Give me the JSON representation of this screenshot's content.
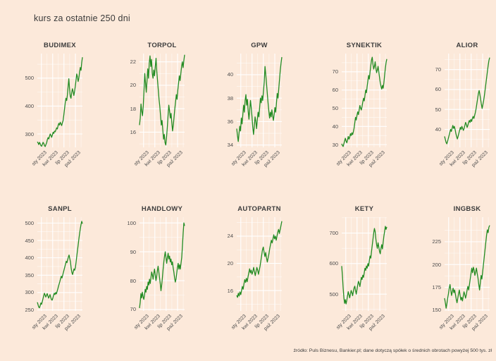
{
  "page": {
    "title": "kurs za ostatnie 250 dni",
    "footer": "źródło: Puls Biznesu, Bankier.pl; dane dotyczą spółek o średnich obrotach powyżej 500 tys. zł",
    "background_color": "#fce9da",
    "line_color": "#228b22",
    "grid_color": "#ffffff",
    "text_color": "#3e3e3e"
  },
  "chart_data": [
    {
      "type": "line",
      "title": "BUDIMEX",
      "x_ticks": [
        "sty 2023",
        "kwi 2023",
        "lip 2023",
        "paź 2023"
      ],
      "y_ticks": [
        300,
        400,
        500
      ],
      "ylim": [
        252,
        588
      ],
      "values": [
        272,
        268,
        262,
        270,
        265,
        258,
        256,
        263,
        270,
        266,
        258,
        255,
        262,
        268,
        280,
        287,
        282,
        292,
        300,
        295,
        288,
        296,
        306,
        302,
        310,
        308,
        315,
        322,
        318,
        330,
        338,
        332,
        342,
        336,
        330,
        340,
        348,
        368,
        390,
        412,
        428,
        420,
        440,
        470,
        498,
        462,
        435,
        428,
        448,
        462,
        452,
        438,
        452,
        470,
        492,
        515,
        505,
        488,
        500,
        522,
        538,
        528,
        556,
        575
      ]
    },
    {
      "type": "line",
      "title": "TORPOL",
      "x_ticks": [
        "sty 2023",
        "kwi 2023",
        "lip 2023",
        "paź 2023"
      ],
      "y_ticks": [
        16,
        18,
        20,
        22
      ],
      "ylim": [
        14.7,
        22.7
      ],
      "values": [
        16.6,
        17.2,
        18.4,
        17.8,
        17.4,
        18.2,
        19.6,
        21.0,
        20.2,
        19.4,
        20.4,
        21.4,
        20.6,
        21.9,
        22.5,
        21.6,
        22.2,
        21.0,
        20.6,
        21.3,
        20.8,
        21.6,
        22.3,
        21.2,
        20.4,
        19.6,
        18.8,
        18.2,
        17.4,
        16.6,
        17.0,
        16.2,
        15.4,
        15.8,
        15.1,
        14.9,
        15.6,
        16.4,
        17.4,
        18.3,
        17.8,
        17.2,
        17.6,
        16.8,
        16.1,
        16.6,
        17.3,
        18.0,
        18.6,
        19.2,
        18.8,
        19.6,
        20.2,
        20.8,
        20.4,
        21.0,
        21.6,
        22.0,
        21.5,
        22.1,
        22.6
      ]
    },
    {
      "type": "line",
      "title": "GPW",
      "x_ticks": [
        "sty 2023",
        "kwi 2023",
        "lip 2023",
        "paź 2023"
      ],
      "y_ticks": [
        34,
        36,
        38,
        40
      ],
      "ylim": [
        33.8,
        41.8
      ],
      "values": [
        35.4,
        34.8,
        34.3,
        35.0,
        35.6,
        35.2,
        36.3,
        35.8,
        36.6,
        37.4,
        36.8,
        37.8,
        38.3,
        37.4,
        37.9,
        36.9,
        36.2,
        37.0,
        37.8,
        37.2,
        36.4,
        35.5,
        34.9,
        35.6,
        36.4,
        36.0,
        35.4,
        36.2,
        36.8,
        36.4,
        37.2,
        38.0,
        37.6,
        38.2,
        37.8,
        38.6,
        39.4,
        40.7,
        40.0,
        39.2,
        38.4,
        37.6,
        36.9,
        36.3,
        36.8,
        36.4,
        37.0,
        36.5,
        36.1,
        36.6,
        37.2,
        36.8,
        37.6,
        38.4,
        38.0,
        38.8,
        39.6,
        40.4,
        41.0,
        41.5
      ]
    },
    {
      "type": "line",
      "title": "SYNEKTIK",
      "x_ticks": [
        "sty 2023",
        "kwi 2023",
        "lip 2023",
        "paź 2023"
      ],
      "y_ticks": [
        30,
        40,
        50,
        60,
        70
      ],
      "ylim": [
        28.5,
        80
      ],
      "values": [
        30.5,
        29.5,
        29.0,
        30.5,
        32.0,
        33.5,
        32.0,
        31.0,
        32.5,
        34.5,
        33.0,
        34.0,
        36.0,
        35.0,
        36.5,
        35.5,
        37.0,
        39.0,
        42.0,
        45.0,
        43.5,
        46.0,
        48.0,
        46.5,
        49.0,
        51.5,
        50.0,
        49.0,
        51.0,
        53.5,
        55.5,
        54.0,
        57.0,
        60.0,
        58.5,
        62.0,
        65.0,
        68.0,
        66.0,
        70.0,
        73.5,
        76.5,
        78.0,
        74.0,
        71.5,
        73.0,
        75.5,
        72.0,
        69.5,
        71.0,
        73.0,
        70.0,
        67.0,
        64.0,
        62.0,
        60.5,
        62.5,
        61.0,
        64.0,
        68.0,
        72.0,
        75.0,
        77.0
      ]
    },
    {
      "type": "line",
      "title": "ALIOR",
      "x_ticks": [
        "sty 2023",
        "kwi 2023",
        "lip 2023",
        "paź 2023"
      ],
      "y_ticks": [
        40,
        50,
        60,
        70
      ],
      "ylim": [
        31,
        78
      ],
      "values": [
        36.5,
        35.0,
        33.5,
        32.8,
        34.0,
        35.5,
        37.0,
        38.5,
        40.0,
        39.0,
        40.5,
        42.0,
        40.5,
        41.5,
        40.0,
        38.0,
        36.5,
        35.2,
        36.5,
        38.0,
        39.5,
        41.0,
        40.0,
        41.5,
        40.5,
        39.5,
        40.5,
        42.0,
        43.5,
        42.5,
        41.0,
        42.0,
        43.5,
        44.5,
        43.5,
        45.0,
        44.0,
        45.5,
        46.5,
        45.5,
        47.0,
        48.5,
        50.5,
        53.0,
        55.5,
        58.0,
        59.5,
        57.5,
        55.0,
        52.5,
        50.5,
        52.5,
        54.5,
        57.0,
        60.0,
        63.0,
        66.0,
        69.0,
        72.0,
        74.5,
        76.0
      ]
    },
    {
      "type": "line",
      "title": "SANPL",
      "x_ticks": [
        "sty 2023",
        "kwi 2023",
        "lip 2023",
        "paź 2023"
      ],
      "y_ticks": [
        250,
        300,
        350,
        400,
        450,
        500
      ],
      "ylim": [
        247,
        517
      ],
      "values": [
        272,
        265,
        258,
        256,
        262,
        270,
        266,
        274,
        282,
        290,
        298,
        293,
        287,
        292,
        297,
        290,
        284,
        289,
        294,
        286,
        280,
        278,
        284,
        292,
        298,
        294,
        300,
        296,
        303,
        310,
        318,
        325,
        332,
        340,
        347,
        342,
        350,
        358,
        366,
        374,
        382,
        390,
        386,
        394,
        402,
        408,
        398,
        388,
        370,
        358,
        352,
        360,
        368,
        364,
        372,
        388,
        405,
        422,
        438,
        455,
        470,
        484,
        496,
        505,
        498
      ]
    },
    {
      "type": "line",
      "title": "HANDLOWY",
      "x_ticks": [
        "sty 2023",
        "kwi 2023",
        "lip 2023",
        "paź 2023"
      ],
      "y_ticks": [
        70,
        80,
        90,
        100
      ],
      "ylim": [
        69.5,
        102
      ],
      "values": [
        70.5,
        72.5,
        75.5,
        74.0,
        76.0,
        74.5,
        73.5,
        75.0,
        77.0,
        76.0,
        78.0,
        77.0,
        79.5,
        78.5,
        80.5,
        79.0,
        81.0,
        83.0,
        82.0,
        80.5,
        82.5,
        84.0,
        82.0,
        80.0,
        81.5,
        83.5,
        85.0,
        83.0,
        81.0,
        79.0,
        76.5,
        78.5,
        81.0,
        84.0,
        86.5,
        88.5,
        90.0,
        88.0,
        86.0,
        88.0,
        89.5,
        87.5,
        88.5,
        86.5,
        87.5,
        85.5,
        86.5,
        84.5,
        83.0,
        81.0,
        79.5,
        80.5,
        82.5,
        84.5,
        86.0,
        84.0,
        85.5,
        84.0,
        86.0,
        88.0,
        92.0,
        96.5,
        100.0,
        99.0
      ]
    },
    {
      "type": "line",
      "title": "AUTOPARTN",
      "x_ticks": [
        "sty 2023",
        "kwi 2023",
        "lip 2023",
        "paź 2023"
      ],
      "y_ticks": [
        16,
        20,
        24
      ],
      "ylim": [
        13,
        26.8
      ],
      "values": [
        15.3,
        15.0,
        15.6,
        15.2,
        15.8,
        15.4,
        16.0,
        16.6,
        16.2,
        17.0,
        17.6,
        17.2,
        17.8,
        17.3,
        18.0,
        18.6,
        19.2,
        18.6,
        19.0,
        18.4,
        18.8,
        19.4,
        18.8,
        18.2,
        18.8,
        19.4,
        19.0,
        18.4,
        19.0,
        19.6,
        20.4,
        21.2,
        22.0,
        22.4,
        21.6,
        21.0,
        21.6,
        20.8,
        20.2,
        20.8,
        21.4,
        22.2,
        22.8,
        23.4,
        23.0,
        23.6,
        24.2,
        23.6,
        24.0,
        23.4,
        24.0,
        24.6,
        25.0,
        24.4,
        25.0,
        25.6,
        26.2
      ]
    },
    {
      "type": "line",
      "title": "KETY",
      "x_ticks": [
        "sty 2023",
        "kwi 2023",
        "lip 2023",
        "paź 2023"
      ],
      "y_ticks": [
        500,
        600,
        700
      ],
      "ylim": [
        445,
        752
      ],
      "values": [
        592,
        560,
        520,
        488,
        470,
        482,
        468,
        480,
        495,
        508,
        498,
        488,
        500,
        512,
        505,
        495,
        508,
        520,
        526,
        512,
        500,
        515,
        530,
        542,
        535,
        525,
        540,
        555,
        548,
        562,
        555,
        570,
        585,
        578,
        592,
        585,
        600,
        592,
        610,
        625,
        618,
        640,
        660,
        680,
        700,
        715,
        705,
        680,
        662,
        650,
        668,
        655,
        640,
        632,
        650,
        662,
        648,
        670,
        690,
        705,
        722,
        712,
        720
      ]
    },
    {
      "type": "line",
      "title": "INGBSK",
      "x_ticks": [
        "sty 2023",
        "kwi 2023",
        "lip 2023",
        "paź 2023"
      ],
      "y_ticks": [
        150,
        175,
        200,
        225
      ],
      "ylim": [
        149,
        252
      ],
      "values": [
        163,
        158,
        152,
        157,
        163,
        168,
        174,
        178,
        172,
        166,
        170,
        174,
        169,
        172,
        167,
        162,
        158,
        163,
        168,
        172,
        166,
        161,
        164,
        160,
        165,
        170,
        167,
        163,
        167,
        172,
        176,
        172,
        178,
        184,
        190,
        196,
        191,
        197,
        194,
        188,
        192,
        196,
        190,
        185,
        178,
        172,
        180,
        188,
        184,
        192,
        200,
        208,
        216,
        224,
        232,
        238,
        235,
        241,
        243
      ]
    }
  ]
}
